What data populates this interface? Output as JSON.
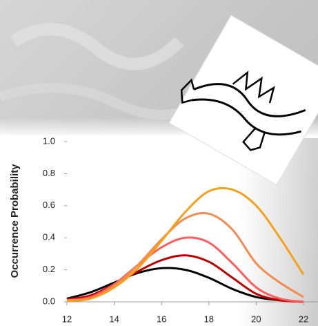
{
  "chart_data": {
    "type": "line",
    "y_label": "Occurrence Probability",
    "x": [
      12,
      13,
      14,
      15,
      16,
      17,
      18,
      19,
      20,
      21,
      22
    ],
    "series": [
      {
        "color": "#000000",
        "values": [
          0.02,
          0.06,
          0.12,
          0.18,
          0.21,
          0.2,
          0.15,
          0.08,
          0.03,
          0.01,
          0.0
        ]
      },
      {
        "color": "#c00000",
        "values": [
          0.015,
          0.04,
          0.11,
          0.19,
          0.26,
          0.29,
          0.25,
          0.15,
          0.05,
          0.01,
          0.0
        ]
      },
      {
        "color": "#ff5c5c",
        "values": [
          0.01,
          0.03,
          0.11,
          0.23,
          0.34,
          0.4,
          0.37,
          0.24,
          0.09,
          0.02,
          0.0
        ]
      },
      {
        "color": "#f58a4e",
        "values": [
          0.01,
          0.02,
          0.1,
          0.23,
          0.39,
          0.52,
          0.55,
          0.45,
          0.24,
          0.12,
          0.03
        ]
      },
      {
        "color": "#f5a01c",
        "values": [
          0.005,
          0.02,
          0.09,
          0.21,
          0.38,
          0.56,
          0.69,
          0.7,
          0.6,
          0.4,
          0.17
        ]
      }
    ],
    "xlim": [
      12,
      22.6
    ],
    "xticks": [
      12,
      14,
      16,
      18,
      20,
      22
    ],
    "ylim": [
      0,
      1
    ],
    "yticks": [
      {
        "value": 0,
        "label": "0.0"
      },
      {
        "value": 0.2,
        "label": "0.2"
      },
      {
        "value": 0.4,
        "label": "0.4"
      },
      {
        "value": 0.6,
        "label": "0.6"
      },
      {
        "value": 0.8,
        "label": "0.8"
      },
      {
        "value": 1,
        "label": "1.0"
      }
    ]
  }
}
